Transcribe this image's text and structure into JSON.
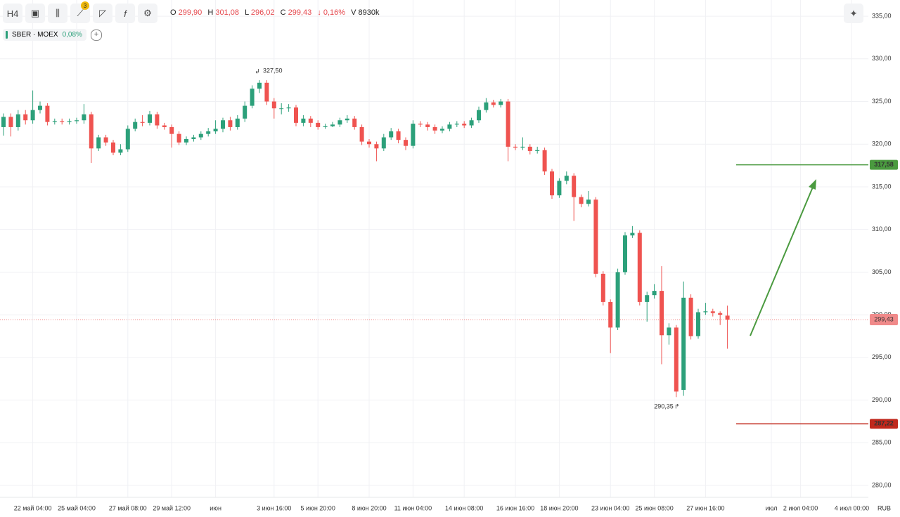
{
  "toolbar": {
    "interval": "H4",
    "drawings_badge": "3"
  },
  "ohlc": {
    "items": [
      {
        "key": "O",
        "value": "299,90"
      },
      {
        "key": "H",
        "value": "301,08"
      },
      {
        "key": "L",
        "value": "296,02"
      },
      {
        "key": "C",
        "value": "299,43"
      }
    ],
    "change": "↓ 0,16%",
    "volume_key": "V",
    "volume": "8930k"
  },
  "legend": {
    "symbol": "SBER · MOEX",
    "change": "0,08%"
  },
  "chart_data": {
    "type": "candlestick",
    "up_color": "#2ca07a",
    "down_color": "#ef5350",
    "grid": true,
    "currency": "RUB",
    "ylim": [
      278.6,
      336.9
    ],
    "yticks": [
      {
        "value": 280,
        "label": "280,00"
      },
      {
        "value": 285,
        "label": "285,00"
      },
      {
        "value": 290,
        "label": "290,00"
      },
      {
        "value": 295,
        "label": "295,00"
      },
      {
        "value": 300,
        "label": "300,00"
      },
      {
        "value": 305,
        "label": "305,00"
      },
      {
        "value": 310,
        "label": "310,00"
      },
      {
        "value": 315,
        "label": "315,00"
      },
      {
        "value": 320,
        "label": "320,00"
      },
      {
        "value": 325,
        "label": "325,00"
      },
      {
        "value": 330,
        "label": "330,00"
      },
      {
        "value": 335,
        "label": "335,00"
      }
    ],
    "categories": [
      null,
      null,
      null,
      null,
      "22 май 04:00",
      null,
      null,
      null,
      null,
      null,
      "25 май 04:00",
      null,
      null,
      null,
      null,
      null,
      null,
      "27 май 08:00",
      null,
      null,
      null,
      null,
      null,
      "29 май 12:00",
      null,
      null,
      null,
      null,
      null,
      "июн",
      null,
      null,
      null,
      null,
      null,
      null,
      null,
      "3 июн 16:00",
      null,
      null,
      null,
      null,
      null,
      "5 июн 20:00",
      null,
      null,
      null,
      null,
      null,
      null,
      "8 июн 20:00",
      null,
      null,
      null,
      null,
      null,
      "11 июн 04:00",
      null,
      null,
      null,
      null,
      null,
      null,
      "14 июн 08:00",
      null,
      null,
      null,
      null,
      null,
      null,
      "16 июн 16:00",
      null,
      null,
      null,
      null,
      null,
      "18 июн 20:00",
      null,
      null,
      null,
      null,
      null,
      null,
      "23 июн 04:00",
      null,
      null,
      null,
      null,
      null,
      "25 июн 08:00",
      null,
      null,
      null,
      null,
      null,
      null,
      "27 июн 16:00",
      null,
      null,
      null,
      null,
      null,
      null,
      null,
      null,
      "июл",
      null,
      null,
      null,
      "2 июл 04:00",
      null,
      null,
      null,
      null,
      null,
      null,
      "4 июл 00:00",
      null
    ],
    "open": [
      322.0,
      323.2,
      322.0,
      323.5,
      322.8,
      324.0,
      324.5,
      322.6,
      322.7,
      322.6,
      322.7,
      322.8,
      323.5,
      319.5,
      320.8,
      320.2,
      319.0,
      319.4,
      321.8,
      322.6,
      322.5,
      323.5,
      322.2,
      322.0,
      321.2,
      320.2,
      320.6,
      320.8,
      321.2,
      321.5,
      321.8,
      322.8,
      322.0,
      323.0,
      324.5,
      326.5,
      327.2,
      325.0,
      324.2,
      324.2,
      324.3,
      322.5,
      323.0,
      322.5,
      322.0,
      322.1,
      322.3,
      322.8,
      323.0,
      322.0,
      320.3,
      320.0,
      319.5,
      320.8,
      321.5,
      320.5,
      319.8,
      322.4,
      322.3,
      322.0,
      321.6,
      321.8,
      322.3,
      322.4,
      322.2,
      322.8,
      324.0,
      324.9,
      324.6,
      325.0,
      319.7,
      319.6,
      319.7,
      319.2,
      319.3,
      316.8,
      314.0,
      315.7,
      316.3,
      313.8,
      313.0,
      313.5,
      304.8,
      301.5,
      298.5,
      305.0,
      309.3,
      309.6,
      301.5,
      302.3,
      302.8,
      297.6,
      298.5,
      291.2,
      302.0,
      297.5,
      300.3,
      300.4,
      300.2,
      299.9,
      null,
      null,
      null,
      null,
      null,
      null,
      null,
      null,
      null,
      null,
      null,
      null,
      null,
      null,
      null,
      null,
      null,
      null
    ],
    "high": [
      323.6,
      323.6,
      324.0,
      324.0,
      326.3,
      325.0,
      324.8,
      323.0,
      323.0,
      323.0,
      323.1,
      324.7,
      323.8,
      321.1,
      321.1,
      320.5,
      320.0,
      322.2,
      323.0,
      323.4,
      323.9,
      323.8,
      322.5,
      322.3,
      321.5,
      320.9,
      321.1,
      321.5,
      321.9,
      322.8,
      323.1,
      323.2,
      323.4,
      325.0,
      326.9,
      327.5,
      327.5,
      325.4,
      324.8,
      324.7,
      324.6,
      323.4,
      323.3,
      322.8,
      322.4,
      322.6,
      323.1,
      323.4,
      323.3,
      322.3,
      320.6,
      320.3,
      321.2,
      321.9,
      321.8,
      320.8,
      322.8,
      322.7,
      322.6,
      322.3,
      322.1,
      322.6,
      322.7,
      322.7,
      323.1,
      324.4,
      325.4,
      325.2,
      325.3,
      325.3,
      320.0,
      320.8,
      320.0,
      319.7,
      319.6,
      317.1,
      316.0,
      316.8,
      316.6,
      314.1,
      314.5,
      313.8,
      305.1,
      301.8,
      305.4,
      309.7,
      310.4,
      309.9,
      302.7,
      303.6,
      305.7,
      299.0,
      298.8,
      303.9,
      302.4,
      300.7,
      301.4,
      300.7,
      300.4,
      301.08,
      null,
      null,
      null,
      null,
      null,
      null,
      null,
      null,
      null,
      null,
      null,
      null,
      null,
      null,
      null,
      null,
      null,
      null
    ],
    "low": [
      321.0,
      320.9,
      321.6,
      322.3,
      322.4,
      323.6,
      322.2,
      322.3,
      322.3,
      322.3,
      322.4,
      322.4,
      317.8,
      319.2,
      319.8,
      318.7,
      318.7,
      319.1,
      321.5,
      322.1,
      322.2,
      321.8,
      321.7,
      319.6,
      319.9,
      319.9,
      320.3,
      320.5,
      320.9,
      321.2,
      321.4,
      321.6,
      321.7,
      322.6,
      324.2,
      326.0,
      324.6,
      323.0,
      323.5,
      323.8,
      322.1,
      322.1,
      322.0,
      321.7,
      321.8,
      322.0,
      322.0,
      322.5,
      321.7,
      319.9,
      319.6,
      318.0,
      319.2,
      320.5,
      320.1,
      319.3,
      319.5,
      322.0,
      321.6,
      321.2,
      321.3,
      321.5,
      322.0,
      321.9,
      321.9,
      322.5,
      323.7,
      324.3,
      324.3,
      318.0,
      319.3,
      319.3,
      318.8,
      318.9,
      316.4,
      313.6,
      313.7,
      315.3,
      311.0,
      312.6,
      312.7,
      304.4,
      301.1,
      295.5,
      298.2,
      304.7,
      309.0,
      301.1,
      299.2,
      301.9,
      294.2,
      296.5,
      290.35,
      290.5,
      297.1,
      297.2,
      300.0,
      299.8,
      298.8,
      296.02,
      null,
      null,
      null,
      null,
      null,
      null,
      null,
      null,
      null,
      null,
      null,
      null,
      null,
      null,
      null,
      null,
      null,
      null
    ],
    "close": [
      323.2,
      322.0,
      323.5,
      322.8,
      324.0,
      324.5,
      322.6,
      322.7,
      322.6,
      322.7,
      322.8,
      323.5,
      319.5,
      320.8,
      320.2,
      319.0,
      319.4,
      321.8,
      322.6,
      322.5,
      323.5,
      322.2,
      322.0,
      321.2,
      320.2,
      320.6,
      320.8,
      321.2,
      321.5,
      321.8,
      322.8,
      322.0,
      323.0,
      324.5,
      326.5,
      327.2,
      325.0,
      324.2,
      324.2,
      324.3,
      322.5,
      323.0,
      322.5,
      322.0,
      322.1,
      322.3,
      322.8,
      323.0,
      322.0,
      320.3,
      320.0,
      319.5,
      320.8,
      321.5,
      320.5,
      319.8,
      322.4,
      322.3,
      322.0,
      321.6,
      321.8,
      322.3,
      322.4,
      322.2,
      322.8,
      324.0,
      324.9,
      324.6,
      325.0,
      319.7,
      319.6,
      319.7,
      319.2,
      319.3,
      316.8,
      314.0,
      315.7,
      316.3,
      313.8,
      313.0,
      313.5,
      304.8,
      301.5,
      298.5,
      305.0,
      309.3,
      309.6,
      301.5,
      302.3,
      302.8,
      297.6,
      298.5,
      291.0,
      302.0,
      297.5,
      300.3,
      300.4,
      300.2,
      300.0,
      299.43,
      null,
      null,
      null,
      null,
      null,
      null,
      null,
      null,
      null,
      null,
      null,
      null,
      null,
      null,
      null,
      null,
      null,
      null
    ],
    "annotations": [
      {
        "label": "327,50",
        "value": 327.5
      },
      {
        "label": "290,35",
        "value": 290.35
      }
    ],
    "current_price": {
      "value": 299.43,
      "label": "299,43",
      "color": "#f08a8a"
    },
    "price_lines": [
      {
        "value": 317.58,
        "label": "317,58",
        "color": "#4a9a3f"
      },
      {
        "value": 287.22,
        "label": "287,22",
        "color": "#c0281c"
      }
    ]
  }
}
